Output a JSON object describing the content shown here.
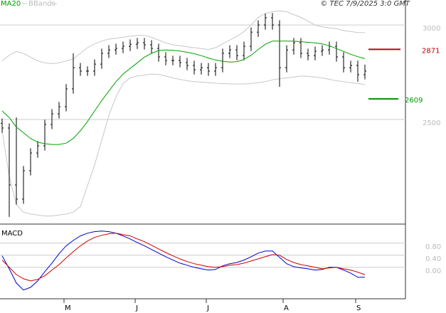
{
  "chart_data": [
    {
      "type": "ohlc",
      "legend": "top-left",
      "source": "© TEC 7/9/2025 3:0 GMT",
      "xlim": [
        -0.3,
        56.7
      ],
      "ylim": [
        1947,
        3132
      ],
      "yticks": [
        2500,
        3000
      ],
      "grid": true,
      "bar_color": "#000000",
      "open": [
        2480,
        2455,
        2154,
        2079,
        2229,
        2323,
        2361,
        2474,
        2530,
        2568,
        2662,
        2774,
        2756,
        2756,
        2793,
        2850,
        2868,
        2876,
        2887,
        2898,
        2906,
        2895,
        2876,
        2831,
        2812,
        2812,
        2801,
        2786,
        2763,
        2774,
        2756,
        2774,
        2850,
        2868,
        2838,
        2887,
        2962,
        3000,
        3038,
        3000,
        2774,
        2868,
        2906,
        2850,
        2838,
        2861,
        2868,
        2887,
        2831,
        2774,
        2786,
        2737
      ],
      "high": [
        2505,
        2480,
        2511,
        2254,
        2348,
        2386,
        2499,
        2555,
        2593,
        2687,
        2850,
        2799,
        2781,
        2818,
        2875,
        2893,
        2901,
        2912,
        2923,
        2931,
        2931,
        2920,
        2901,
        2856,
        2837,
        2837,
        2826,
        2811,
        2799,
        2799,
        2799,
        2875,
        2893,
        2893,
        2912,
        2987,
        3025,
        3060,
        3063,
        3025,
        2893,
        2931,
        2931,
        2875,
        2886,
        2893,
        2912,
        2912,
        2856,
        2811,
        2811,
        2790
      ],
      "low": [
        2430,
        1985,
        2050,
        2054,
        2204,
        2298,
        2336,
        2449,
        2505,
        2543,
        2637,
        2731,
        2731,
        2731,
        2768,
        2825,
        2843,
        2851,
        2862,
        2873,
        2870,
        2851,
        2806,
        2787,
        2787,
        2776,
        2761,
        2738,
        2738,
        2731,
        2731,
        2749,
        2825,
        2813,
        2813,
        2862,
        2937,
        2975,
        2975,
        2673,
        2749,
        2843,
        2825,
        2813,
        2813,
        2836,
        2843,
        2806,
        2749,
        2749,
        2700,
        2712
      ],
      "close": [
        2455,
        2154,
        2079,
        2229,
        2323,
        2361,
        2474,
        2530,
        2568,
        2662,
        2774,
        2756,
        2756,
        2793,
        2850,
        2868,
        2876,
        2887,
        2898,
        2906,
        2895,
        2876,
        2831,
        2812,
        2812,
        2801,
        2786,
        2763,
        2774,
        2756,
        2774,
        2850,
        2868,
        2838,
        2887,
        2962,
        3000,
        3038,
        3000,
        2774,
        2868,
        2906,
        2850,
        2838,
        2861,
        2868,
        2887,
        2831,
        2774,
        2786,
        2737,
        2756
      ],
      "series": [
        {
          "name": "MA20",
          "color": "#00a000",
          "values": [
            2545,
            2510,
            2460,
            2430,
            2400,
            2380,
            2372,
            2368,
            2368,
            2375,
            2400,
            2440,
            2490,
            2545,
            2600,
            2650,
            2700,
            2740,
            2770,
            2800,
            2830,
            2850,
            2865,
            2868,
            2866,
            2862,
            2856,
            2848,
            2838,
            2825,
            2815,
            2808,
            2804,
            2806,
            2818,
            2840,
            2870,
            2898,
            2915,
            2915,
            2915,
            2914,
            2912,
            2908,
            2905,
            2900,
            2890,
            2875,
            2860,
            2845,
            2832,
            2822
          ]
        },
        {
          "name": "BBands",
          "color": "#c8c8c8",
          "upper": [
            2810,
            2840,
            2860,
            2850,
            2830,
            2810,
            2800,
            2795,
            2800,
            2810,
            2820,
            2850,
            2880,
            2900,
            2915,
            2925,
            2930,
            2935,
            2940,
            2945,
            2945,
            2935,
            2920,
            2905,
            2895,
            2890,
            2885,
            2880,
            2875,
            2870,
            2880,
            2900,
            2920,
            2940,
            2965,
            3000,
            3040,
            3060,
            3070,
            3075,
            3070,
            3055,
            3040,
            3020,
            3000,
            2990,
            2985,
            2980,
            2970,
            2965,
            2960,
            2960
          ],
          "lower": [
            2440,
            2200,
            2050,
            2010,
            2000,
            1995,
            1990,
            1990,
            1995,
            2000,
            2010,
            2040,
            2150,
            2260,
            2390,
            2520,
            2620,
            2690,
            2720,
            2730,
            2735,
            2740,
            2738,
            2730,
            2720,
            2712,
            2705,
            2700,
            2698,
            2695,
            2692,
            2690,
            2688,
            2688,
            2688,
            2690,
            2695,
            2700,
            2710,
            2715,
            2720,
            2725,
            2730,
            2728,
            2725,
            2720,
            2712,
            2705,
            2700,
            2695,
            2690,
            2685
          ]
        }
      ],
      "levels": [
        {
          "value": 2871,
          "color": "#c00000"
        },
        {
          "value": 2609,
          "color": "#009900"
        }
      ]
    },
    {
      "type": "line",
      "title": "MACD",
      "xlim": [
        -0.3,
        56.7
      ],
      "xticks": [
        {
          "value": 8.7,
          "label": "M"
        },
        {
          "value": 18.7,
          "label": "J"
        },
        {
          "value": 28.7,
          "label": "J"
        },
        {
          "value": 39.5,
          "label": "A"
        },
        {
          "value": 49.7,
          "label": "S"
        }
      ],
      "ylim": [
        -1.04,
        1.36
      ],
      "yticks": [
        {
          "value": 0,
          "label": "0.00"
        },
        {
          "value": 0.4,
          "label": "0.40"
        },
        {
          "value": 0.8,
          "label": "0.80"
        }
      ],
      "series": [
        {
          "color": "#0000cc",
          "values": [
            0.38,
            -0.05,
            -0.52,
            -0.75,
            -0.66,
            -0.45,
            -0.14,
            0.14,
            0.45,
            0.71,
            0.89,
            1.04,
            1.13,
            1.18,
            1.2,
            1.18,
            1.13,
            1.04,
            0.94,
            0.82,
            0.71,
            0.59,
            0.47,
            0.35,
            0.24,
            0.14,
            0.07,
            0,
            -0.05,
            -0.09,
            -0.07,
            0.05,
            0.12,
            0.16,
            0.24,
            0.35,
            0.47,
            0.54,
            0.54,
            0.33,
            0.12,
            0.02,
            -0.02,
            -0.05,
            -0.09,
            -0.07,
            0,
            0,
            -0.09,
            -0.19,
            -0.33,
            -0.33
          ]
        },
        {
          "color": "#cc0000",
          "values": [
            0.24,
            0,
            -0.24,
            -0.38,
            -0.45,
            -0.4,
            -0.28,
            -0.09,
            0.09,
            0.31,
            0.52,
            0.71,
            0.87,
            0.99,
            1.06,
            1.11,
            1.13,
            1.08,
            1.04,
            0.94,
            0.85,
            0.73,
            0.61,
            0.49,
            0.38,
            0.28,
            0.19,
            0.12,
            0.07,
            0.02,
            0,
            0.02,
            0.07,
            0.09,
            0.14,
            0.21,
            0.28,
            0.35,
            0.42,
            0.4,
            0.26,
            0.16,
            0.09,
            0.05,
            0,
            -0.05,
            -0.02,
            0,
            -0.05,
            -0.09,
            -0.16,
            -0.24
          ]
        }
      ]
    }
  ]
}
